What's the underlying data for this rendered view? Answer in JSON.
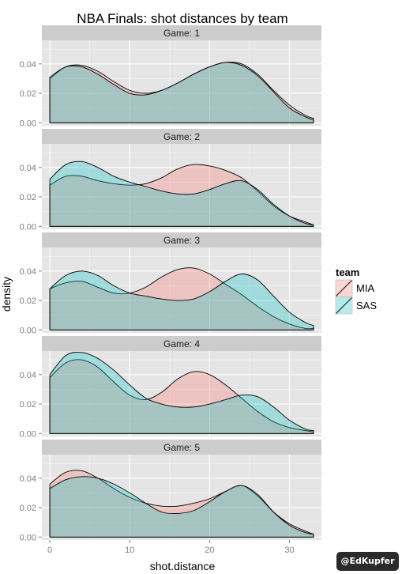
{
  "chart_data": {
    "type": "area",
    "title": "NBA Finals: shot distances by team",
    "xlabel": "shot.distance",
    "ylabel": "density",
    "xlim": [
      -1,
      34
    ],
    "ylim": [
      -0.002,
      0.056
    ],
    "x_ticks": [
      0,
      10,
      20,
      30
    ],
    "y_ticks": [
      0.0,
      0.02,
      0.04
    ],
    "y_tick_labels": [
      "0.00",
      "0.02",
      "0.04"
    ],
    "grid": true,
    "legend": {
      "title": "team",
      "placement": "right",
      "entries": [
        {
          "name": "MIA",
          "color": "#f8766d"
        },
        {
          "name": "SAS",
          "color": "#00bfc4"
        }
      ]
    },
    "x": [
      0,
      2,
      4,
      6,
      8,
      10,
      12,
      14,
      16,
      18,
      20,
      22,
      24,
      26,
      28,
      30,
      32,
      33
    ],
    "panels": [
      {
        "label": "Game: 1",
        "series": [
          {
            "name": "MIA",
            "values": [
              0.03,
              0.038,
              0.039,
              0.035,
              0.028,
              0.022,
              0.02,
              0.022,
              0.027,
              0.033,
              0.038,
              0.041,
              0.04,
              0.033,
              0.022,
              0.012,
              0.005,
              0.003
            ]
          },
          {
            "name": "SAS",
            "values": [
              0.031,
              0.038,
              0.038,
              0.033,
              0.026,
              0.02,
              0.019,
              0.022,
              0.027,
              0.033,
              0.038,
              0.041,
              0.039,
              0.032,
              0.021,
              0.01,
              0.004,
              0.002
            ]
          }
        ]
      },
      {
        "label": "Game: 2",
        "series": [
          {
            "name": "MIA",
            "values": [
              0.028,
              0.034,
              0.034,
              0.031,
              0.029,
              0.028,
              0.029,
              0.033,
              0.039,
              0.042,
              0.041,
              0.038,
              0.033,
              0.024,
              0.014,
              0.007,
              0.003,
              0.001
            ]
          },
          {
            "name": "SAS",
            "values": [
              0.032,
              0.042,
              0.044,
              0.04,
              0.034,
              0.03,
              0.027,
              0.024,
              0.022,
              0.022,
              0.025,
              0.029,
              0.031,
              0.025,
              0.015,
              0.007,
              0.002,
              0.001
            ]
          }
        ]
      },
      {
        "label": "Game: 3",
        "series": [
          {
            "name": "MIA",
            "values": [
              0.028,
              0.032,
              0.033,
              0.029,
              0.025,
              0.025,
              0.029,
              0.036,
              0.041,
              0.042,
              0.038,
              0.031,
              0.024,
              0.016,
              0.009,
              0.004,
              0.001,
              0.001
            ]
          },
          {
            "name": "SAS",
            "values": [
              0.028,
              0.037,
              0.04,
              0.037,
              0.03,
              0.025,
              0.023,
              0.021,
              0.02,
              0.021,
              0.026,
              0.033,
              0.038,
              0.034,
              0.023,
              0.012,
              0.005,
              0.003
            ]
          }
        ]
      },
      {
        "label": "Game: 4",
        "series": [
          {
            "name": "MIA",
            "values": [
              0.038,
              0.048,
              0.05,
              0.045,
              0.035,
              0.026,
              0.023,
              0.028,
              0.037,
              0.042,
              0.04,
              0.033,
              0.024,
              0.015,
              0.008,
              0.004,
              0.002,
              0.001
            ]
          },
          {
            "name": "SAS",
            "values": [
              0.04,
              0.053,
              0.055,
              0.051,
              0.043,
              0.033,
              0.024,
              0.02,
              0.018,
              0.018,
              0.02,
              0.023,
              0.026,
              0.025,
              0.018,
              0.009,
              0.003,
              0.002
            ]
          }
        ]
      },
      {
        "label": "Game: 5",
        "series": [
          {
            "name": "MIA",
            "values": [
              0.036,
              0.044,
              0.045,
              0.04,
              0.033,
              0.027,
              0.023,
              0.021,
              0.021,
              0.023,
              0.026,
              0.031,
              0.035,
              0.028,
              0.017,
              0.009,
              0.004,
              0.002
            ]
          },
          {
            "name": "SAS",
            "values": [
              0.033,
              0.039,
              0.041,
              0.04,
              0.036,
              0.03,
              0.023,
              0.017,
              0.016,
              0.018,
              0.024,
              0.031,
              0.035,
              0.029,
              0.017,
              0.008,
              0.003,
              0.002
            ]
          }
        ]
      }
    ]
  },
  "badge": {
    "text": "@EdKupfer"
  }
}
